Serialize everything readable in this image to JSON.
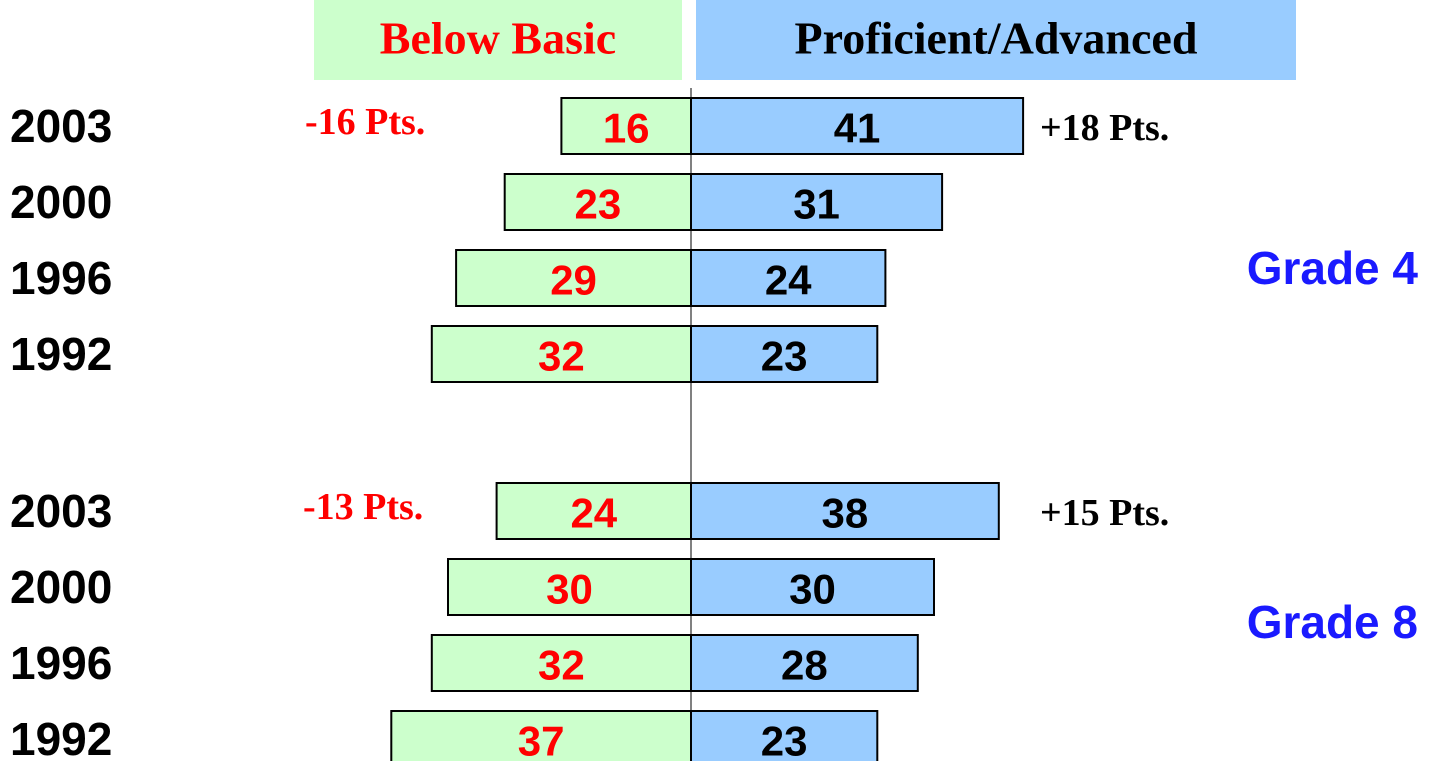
{
  "chart_data": {
    "type": "diverging_bar",
    "series": [
      {
        "name": "Below Basic",
        "color": "#ccffcc",
        "label_color": "#ff0000"
      },
      {
        "name": "Proficient/Advanced",
        "color": "#99ccff",
        "label_color": "#000000"
      }
    ],
    "panels": [
      {
        "label": "Grade 4",
        "categories": [
          "2003",
          "2000",
          "1996",
          "1992"
        ],
        "series": [
          {
            "values": [
              16,
              23,
              29,
              32
            ]
          },
          {
            "values": [
              41,
              31,
              24,
              23
            ]
          }
        ],
        "annotations": [
          "-16 Pts.",
          "+18 Pts."
        ]
      },
      {
        "label": "Grade 8",
        "categories": [
          "2003",
          "2000",
          "1996",
          "1992"
        ],
        "series": [
          {
            "values": [
              24,
              30,
              32,
              37
            ]
          },
          {
            "values": [
              38,
              30,
              28,
              23
            ]
          }
        ],
        "annotations": [
          "-13 Pts.",
          "+15 Pts."
        ]
      }
    ]
  }
}
